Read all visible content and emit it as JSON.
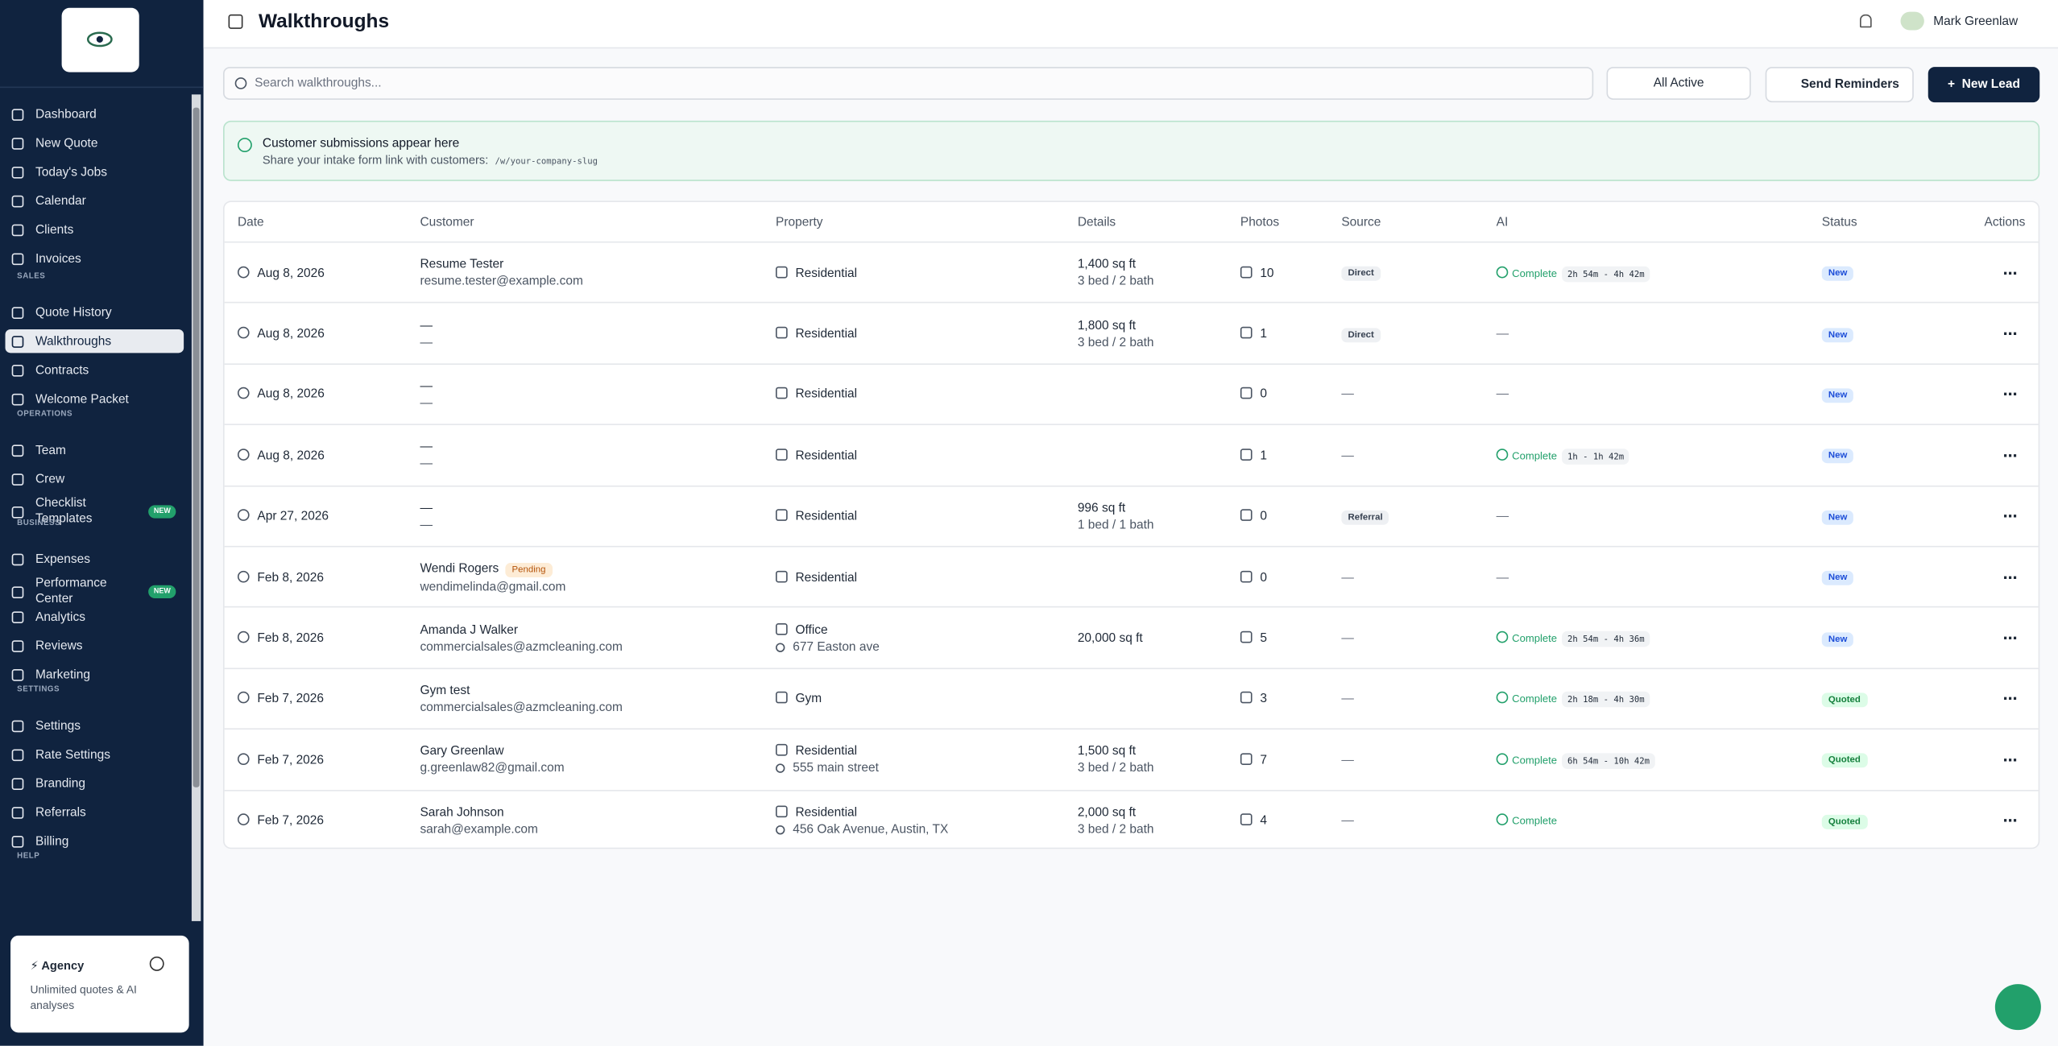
{
  "sidebar": {
    "nav": [
      {
        "label": "Dashboard"
      },
      {
        "label": "New Quote"
      },
      {
        "label": "Today's Jobs"
      },
      {
        "label": "Calendar"
      },
      {
        "label": "Clients"
      },
      {
        "label": "Invoices"
      }
    ],
    "sections": [
      {
        "label": "SALES",
        "items": [
          {
            "label": "Quote History"
          },
          {
            "label": "Walkthroughs",
            "active": true
          },
          {
            "label": "Contracts"
          },
          {
            "label": "Welcome Packet"
          }
        ]
      },
      {
        "label": "OPERATIONS",
        "items": [
          {
            "label": "Team"
          },
          {
            "label": "Crew"
          },
          {
            "label": "Checklist Templates",
            "badge": "NEW"
          }
        ]
      },
      {
        "label": "BUSINESS",
        "items": [
          {
            "label": "Expenses"
          },
          {
            "label": "Performance Center",
            "badge": "NEW"
          },
          {
            "label": "Analytics"
          },
          {
            "label": "Reviews"
          },
          {
            "label": "Marketing"
          }
        ]
      },
      {
        "label": "SETTINGS",
        "items": [
          {
            "label": "Settings"
          },
          {
            "label": "Rate Settings"
          },
          {
            "label": "Branding"
          },
          {
            "label": "Referrals"
          },
          {
            "label": "Billing"
          }
        ]
      },
      {
        "label": "HELP",
        "items": []
      }
    ],
    "plan": {
      "name": "Agency",
      "description": "Unlimited quotes & AI analyses"
    }
  },
  "header": {
    "title": "Walkthroughs",
    "user": "Mark Greenlaw"
  },
  "toolbar": {
    "search_placeholder": "Search walkthroughs...",
    "filter": "All Active",
    "send_reminders": "Send Reminders",
    "new_lead": "New Lead"
  },
  "banner": {
    "title": "Customer submissions appear here",
    "text": "Share your intake form link with customers:",
    "link": "/w/your-company-slug"
  },
  "table": {
    "columns": [
      "Date",
      "Customer",
      "Property",
      "Details",
      "Photos",
      "Source",
      "AI",
      "Status",
      "Actions"
    ],
    "rows": [
      {
        "date": "Aug 8, 2026",
        "customer": "Resume Tester",
        "email": "resume.tester@example.com",
        "property": "Residential",
        "area": "1,400 sq ft",
        "rooms": "3 bed / 2 bath",
        "photos": 10,
        "source": "Direct",
        "ai": "Complete",
        "ai_time": "2h 54m - 4h 42m",
        "status": "New",
        "status_color": "#1d4ed8",
        "status_bg": "#dbeafe"
      },
      {
        "date": "Aug 8, 2026",
        "customer": "—",
        "email": "—",
        "property": "Residential",
        "area": "1,800 sq ft",
        "rooms": "3 bed / 2 bath",
        "photos": 1,
        "source": "Direct",
        "ai": "—",
        "status": "New",
        "status_color": "#1d4ed8",
        "status_bg": "#dbeafe"
      },
      {
        "date": "Aug 8, 2026",
        "customer": "—",
        "email": "—",
        "property": "Residential",
        "photos": 0,
        "source": "—",
        "ai": "—",
        "status": "New",
        "status_color": "#1d4ed8",
        "status_bg": "#dbeafe"
      },
      {
        "date": "Aug 8, 2026",
        "customer": "—",
        "email": "—",
        "property": "Residential",
        "photos": 1,
        "source": "—",
        "ai": "Complete",
        "ai_time": "1h - 1h 42m",
        "status": "New",
        "status_color": "#1d4ed8",
        "status_bg": "#dbeafe"
      },
      {
        "date": "Apr 27, 2026",
        "customer": "—",
        "email": "—",
        "property": "Residential",
        "area": "996 sq ft",
        "rooms": "1 bed / 1 bath",
        "photos": 0,
        "source": "Referral",
        "ai": "—",
        "status": "New",
        "status_color": "#1d4ed8",
        "status_bg": "#dbeafe"
      },
      {
        "date": "Feb 8, 2026",
        "customer": "Wendi Rogers",
        "pending": "Pending",
        "email": "wendimelinda@gmail.com",
        "property": "Residential",
        "photos": 0,
        "source": "—",
        "ai": "—",
        "status": "New",
        "status_color": "#1d4ed8",
        "status_bg": "#dbeafe"
      },
      {
        "date": "Feb 8, 2026",
        "customer": "Amanda J Walker",
        "email": "commercialsales@azmcleaning.com",
        "property": "Office",
        "address": "677 Easton ave",
        "area": "20,000 sq ft",
        "photos": 5,
        "source": "—",
        "ai": "Complete",
        "ai_time": "2h 54m - 4h 36m",
        "status": "New",
        "status_color": "#1d4ed8",
        "status_bg": "#dbeafe"
      },
      {
        "date": "Feb 7, 2026",
        "customer": "Gym test",
        "email": "commercialsales@azmcleaning.com",
        "property": "Gym",
        "photos": 3,
        "source": "—",
        "ai": "Complete",
        "ai_time": "2h 18m - 4h 30m",
        "status": "Quoted",
        "status_color": "#15803d",
        "status_bg": "#dcfce7"
      },
      {
        "date": "Feb 7, 2026",
        "customer": "Gary Greenlaw",
        "email": "g.greenlaw82@gmail.com",
        "property": "Residential",
        "address": "555 main street",
        "area": "1,500 sq ft",
        "rooms": "3 bed / 2 bath",
        "photos": 7,
        "source": "—",
        "ai": "Complete",
        "ai_time": "6h 54m - 10h 42m",
        "status": "Quoted",
        "status_color": "#15803d",
        "status_bg": "#dcfce7"
      },
      {
        "date": "Feb 7, 2026",
        "customer": "Sarah Johnson",
        "email": "sarah@example.com",
        "property": "Residential",
        "address": "456 Oak Avenue, Austin, TX",
        "area": "2,000 sq ft",
        "rooms": "3 bed / 2 bath",
        "photos": 4,
        "source": "—",
        "ai": "Complete",
        "status": "Quoted",
        "status_color": "#15803d",
        "status_bg": "#dcfce7"
      }
    ]
  }
}
